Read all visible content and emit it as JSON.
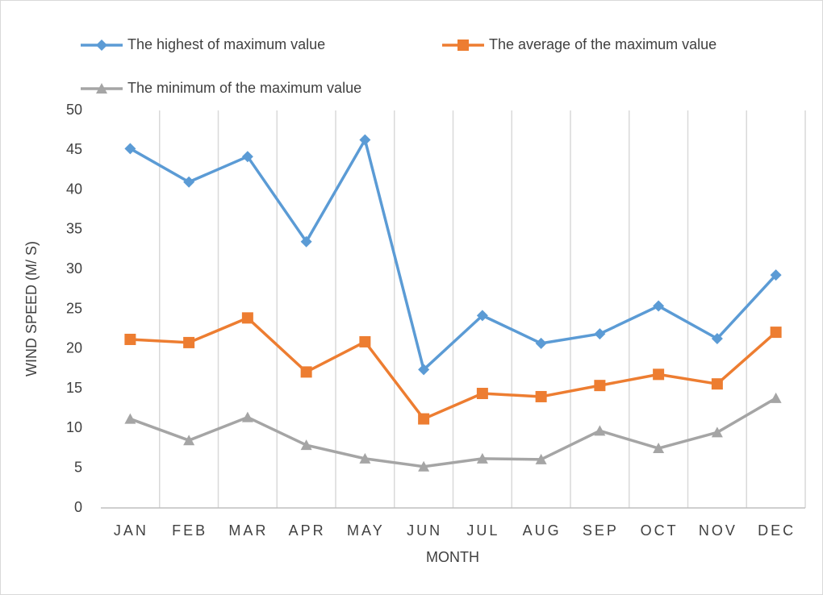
{
  "chart_data": {
    "type": "line",
    "x_label": "MONTH",
    "y_label": "WIND SPEED (M/ S)",
    "categories": [
      "JAN",
      "FEB",
      "MAR",
      "APR",
      "MAY",
      "JUN",
      "JUL",
      "AUG",
      "SEP",
      "OCT",
      "NOV",
      "DEC"
    ],
    "series": [
      {
        "name": "The highest of maximum value",
        "color": "#5b9bd5",
        "marker": "diamond",
        "values": [
          45.2,
          41.0,
          44.2,
          33.5,
          46.3,
          17.4,
          24.2,
          20.7,
          21.9,
          25.4,
          21.3,
          29.3
        ]
      },
      {
        "name": "The average of the maximum value",
        "color": "#ed7d31",
        "marker": "square",
        "values": [
          21.2,
          20.8,
          23.9,
          17.1,
          20.9,
          11.2,
          14.4,
          14.0,
          15.4,
          16.8,
          15.6,
          22.1
        ]
      },
      {
        "name": "The minimum of the maximum value",
        "color": "#a5a5a5",
        "marker": "triangle",
        "values": [
          11.2,
          8.5,
          11.4,
          7.9,
          6.2,
          5.2,
          6.2,
          6.1,
          9.7,
          7.5,
          9.5,
          13.8
        ]
      }
    ],
    "ylim": [
      0,
      50
    ],
    "yticks": [
      0,
      5,
      10,
      15,
      20,
      25,
      30,
      35,
      40,
      45,
      50
    ],
    "vertical_grid": true,
    "legend": "top"
  }
}
